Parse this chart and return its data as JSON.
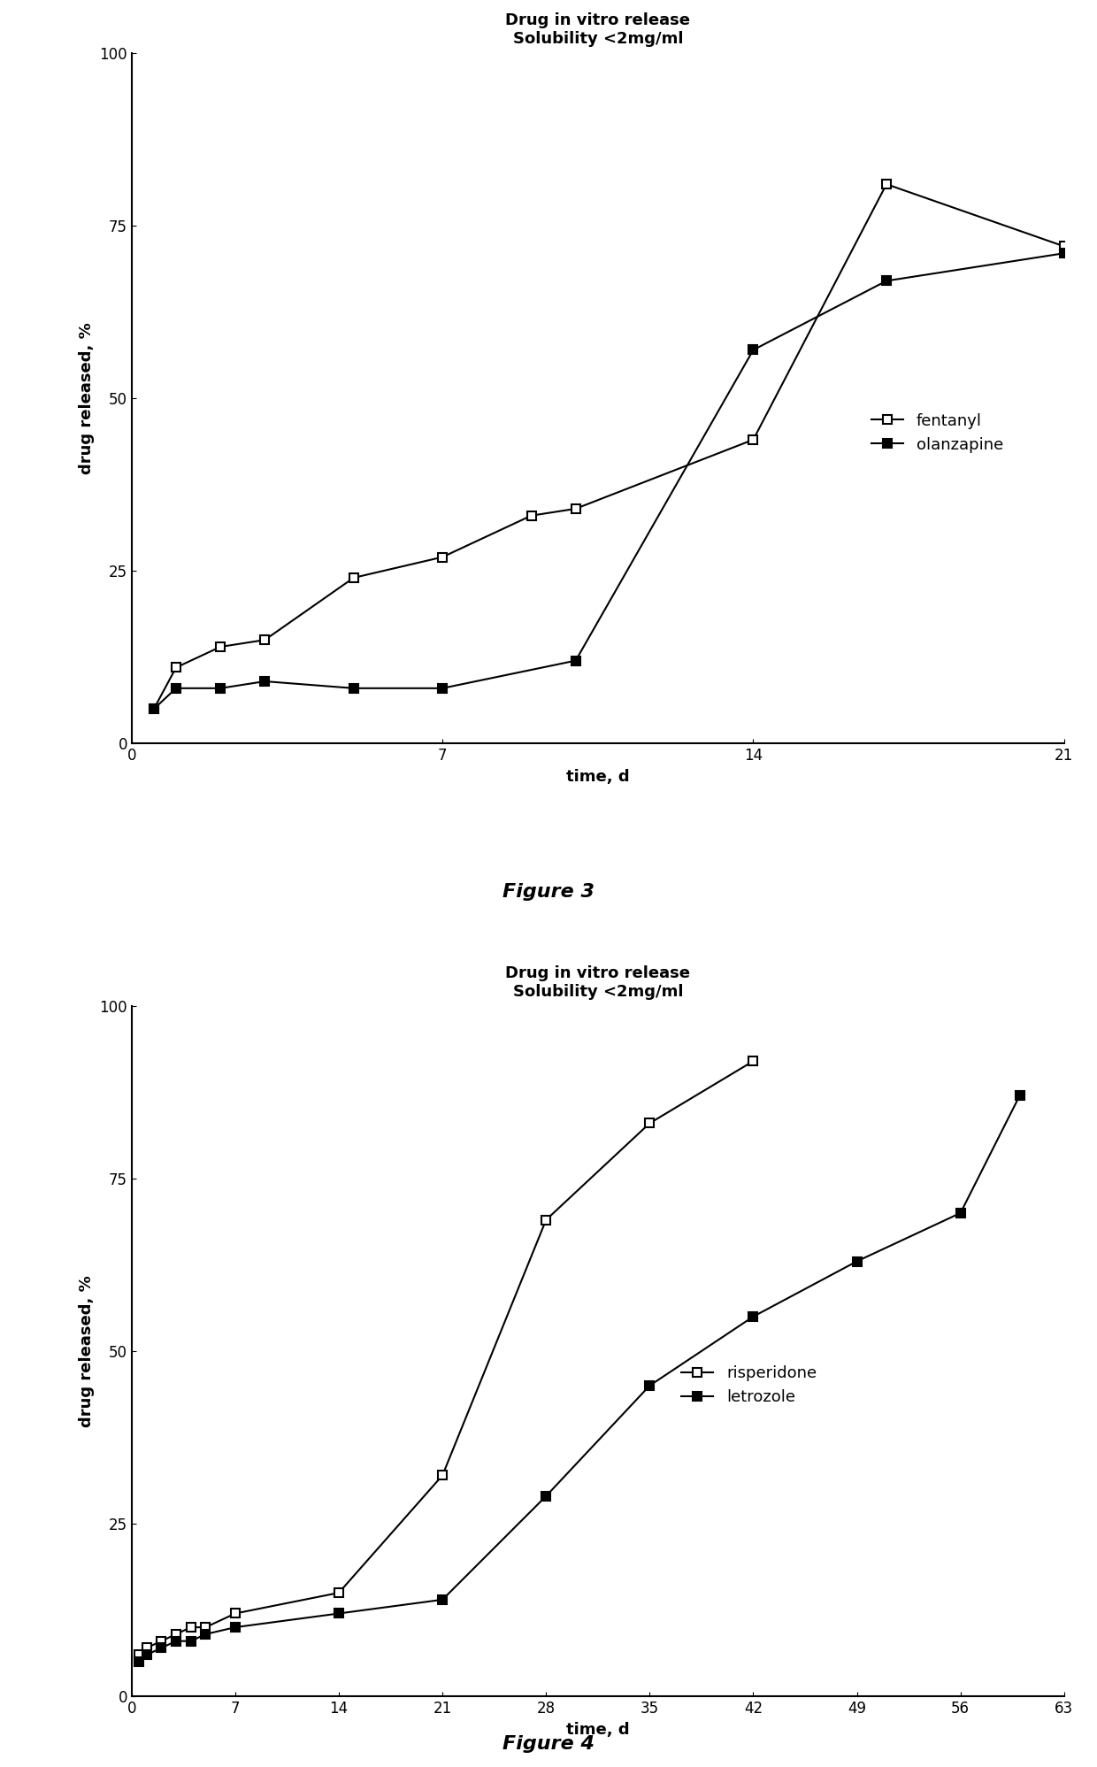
{
  "fig3": {
    "title_line1": "Drug in vitro release",
    "title_line2": "Solubility <2mg/ml",
    "xlabel": "time, d",
    "ylabel": "drug released, %",
    "ylim": [
      0,
      100
    ],
    "yticks": [
      0,
      25,
      50,
      75,
      100
    ],
    "xlim": [
      0,
      21
    ],
    "xticks": [
      0,
      7,
      14,
      21
    ],
    "fentanyl_x": [
      0.5,
      1,
      2,
      3,
      5,
      7,
      9,
      10,
      14,
      17,
      21
    ],
    "fentanyl_y": [
      5,
      11,
      14,
      15,
      24,
      27,
      33,
      34,
      44,
      81,
      72
    ],
    "olanzapine_x": [
      0.5,
      1,
      2,
      3,
      5,
      7,
      10,
      14,
      17,
      21
    ],
    "olanzapine_y": [
      5,
      8,
      8,
      9,
      8,
      8,
      12,
      57,
      67,
      71
    ],
    "figure_label": "Figure 3"
  },
  "fig4": {
    "title_line1": "Drug in vitro release",
    "title_line2": "Solubility <2mg/ml",
    "xlabel": "time, d",
    "ylabel": "drug released, %",
    "ylim": [
      0,
      100
    ],
    "yticks": [
      0,
      25,
      50,
      75,
      100
    ],
    "xlim": [
      0,
      63
    ],
    "xticks": [
      0,
      7,
      14,
      21,
      28,
      35,
      42,
      49,
      56,
      63
    ],
    "risperidone_x": [
      0.5,
      1,
      2,
      3,
      4,
      5,
      7,
      14,
      21,
      28,
      35,
      42
    ],
    "risperidone_y": [
      6,
      7,
      8,
      9,
      10,
      10,
      12,
      15,
      32,
      69,
      83,
      92
    ],
    "letrozole_x": [
      0.5,
      1,
      2,
      3,
      4,
      5,
      7,
      14,
      21,
      28,
      35,
      42,
      49,
      56,
      60
    ],
    "letrozole_y": [
      5,
      6,
      7,
      8,
      8,
      9,
      10,
      12,
      14,
      29,
      45,
      55,
      63,
      70,
      87
    ],
    "figure_label": "Figure 4"
  },
  "bg_color": "#ffffff",
  "line_color": "#000000",
  "title_fontsize": 13,
  "label_fontsize": 13,
  "tick_fontsize": 12,
  "legend_fontsize": 13,
  "figure_label_fontsize": 16
}
